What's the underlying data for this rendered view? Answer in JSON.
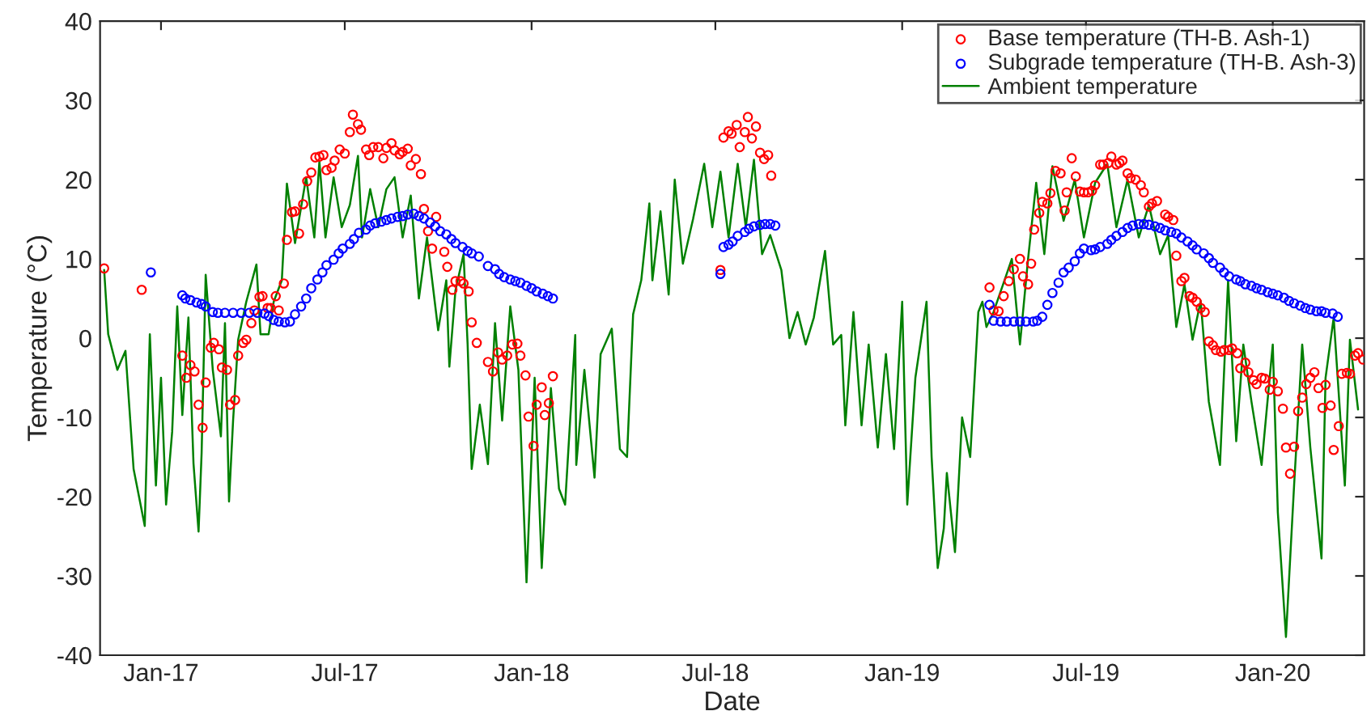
{
  "chart_data": {
    "type": "scatter",
    "xlabel": "Date",
    "ylabel": "Temperature (°C)",
    "xlim": [
      "2016-11-02",
      "2020-03-31"
    ],
    "xticks": [
      {
        "value": "2017-01-01",
        "label": "Jan-17"
      },
      {
        "value": "2017-07-01",
        "label": "Jul-17"
      },
      {
        "value": "2018-01-01",
        "label": "Jan-18"
      },
      {
        "value": "2018-07-01",
        "label": "Jul-18"
      },
      {
        "value": "2019-01-01",
        "label": "Jan-19"
      },
      {
        "value": "2019-07-01",
        "label": "Jul-19"
      },
      {
        "value": "2020-01-01",
        "label": "Jan-20"
      }
    ],
    "ylim": [
      -40,
      40
    ],
    "yticks": [
      -40,
      -30,
      -20,
      -10,
      0,
      10,
      20,
      30,
      40
    ],
    "grid": false,
    "legend": "top right",
    "series": [
      {
        "name": "Base temperature (TH-B. Ash-1)",
        "marker": "circle",
        "color": "#ff0000",
        "x": [
          "2016-11-06",
          "2016-12-13",
          "2017-01-22",
          "2017-01-26",
          "2017-01-30",
          "2017-02-03",
          "2017-02-07",
          "2017-02-11",
          "2017-02-14",
          "2017-02-19",
          "2017-02-22",
          "2017-02-27",
          "2017-03-02",
          "2017-03-07",
          "2017-03-10",
          "2017-03-15",
          "2017-03-18",
          "2017-03-23",
          "2017-03-26",
          "2017-03-31",
          "2017-04-03",
          "2017-04-08",
          "2017-04-11",
          "2017-04-16",
          "2017-04-19",
          "2017-04-24",
          "2017-04-27",
          "2017-05-02",
          "2017-05-05",
          "2017-05-10",
          "2017-05-13",
          "2017-05-17",
          "2017-05-21",
          "2017-05-25",
          "2017-05-29",
          "2017-06-02",
          "2017-06-06",
          "2017-06-10",
          "2017-06-13",
          "2017-06-18",
          "2017-06-21",
          "2017-06-26",
          "2017-07-01",
          "2017-07-06",
          "2017-07-09",
          "2017-07-14",
          "2017-07-17",
          "2017-07-22",
          "2017-07-25",
          "2017-07-29",
          "2017-08-03",
          "2017-08-08",
          "2017-08-11",
          "2017-08-16",
          "2017-08-19",
          "2017-08-24",
          "2017-08-27",
          "2017-09-01",
          "2017-09-04",
          "2017-09-09",
          "2017-09-14",
          "2017-09-17",
          "2017-09-21",
          "2017-09-25",
          "2017-09-29",
          "2017-10-07",
          "2017-10-10",
          "2017-10-15",
          "2017-10-18",
          "2017-10-23",
          "2017-10-26",
          "2017-10-31",
          "2017-11-03",
          "2017-11-08",
          "2017-11-19",
          "2017-11-24",
          "2017-11-29",
          "2017-12-03",
          "2017-12-08",
          "2017-12-13",
          "2017-12-18",
          "2017-12-21",
          "2017-12-26",
          "2017-12-29",
          "2018-01-03",
          "2018-01-06",
          "2018-01-11",
          "2018-01-14",
          "2018-01-18",
          "2018-01-22",
          "2018-07-06",
          "2018-07-09",
          "2018-07-14",
          "2018-07-17",
          "2018-07-22",
          "2018-07-25",
          "2018-07-30",
          "2018-08-02",
          "2018-08-06",
          "2018-08-10",
          "2018-08-14",
          "2018-08-18",
          "2018-08-22",
          "2018-08-25",
          "2019-03-28",
          "2019-04-01",
          "2019-04-06",
          "2019-04-11",
          "2019-04-16",
          "2019-04-21",
          "2019-04-27",
          "2019-04-30",
          "2019-05-05",
          "2019-05-08",
          "2019-05-11",
          "2019-05-16",
          "2019-05-19",
          "2019-05-24",
          "2019-05-27",
          "2019-06-01",
          "2019-06-06",
          "2019-06-10",
          "2019-06-12",
          "2019-06-17",
          "2019-06-21",
          "2019-06-25",
          "2019-06-29",
          "2019-07-03",
          "2019-07-07",
          "2019-07-10",
          "2019-07-15",
          "2019-07-18",
          "2019-07-23",
          "2019-07-26",
          "2019-07-31",
          "2019-08-03",
          "2019-08-06",
          "2019-08-11",
          "2019-08-14",
          "2019-08-19",
          "2019-08-24",
          "2019-08-27",
          "2019-09-01",
          "2019-09-04",
          "2019-09-09",
          "2019-09-17",
          "2019-09-20",
          "2019-09-25",
          "2019-09-28",
          "2019-10-03",
          "2019-10-06",
          "2019-10-11",
          "2019-10-14",
          "2019-10-18",
          "2019-10-22",
          "2019-10-26",
          "2019-10-30",
          "2019-11-03",
          "2019-11-06",
          "2019-11-11",
          "2019-11-14",
          "2019-11-19",
          "2019-11-22",
          "2019-11-27",
          "2019-11-30",
          "2019-12-05",
          "2019-12-08",
          "2019-12-13",
          "2019-12-16",
          "2019-12-21",
          "2019-12-24",
          "2019-12-29",
          "2020-01-01",
          "2020-01-06",
          "2020-01-11",
          "2020-01-14",
          "2020-01-18",
          "2020-01-22",
          "2020-01-26",
          "2020-01-30",
          "2020-02-03",
          "2020-02-07",
          "2020-02-11",
          "2020-02-15",
          "2020-02-19",
          "2020-02-22",
          "2020-02-27",
          "2020-03-01",
          "2020-03-06",
          "2020-03-09",
          "2020-03-14",
          "2020-03-17",
          "2020-03-22",
          "2020-03-25",
          "2020-03-30"
        ],
        "values": [
          8.8,
          6.1,
          -2.2,
          -5,
          -3.4,
          -4.2,
          -8.4,
          -11.3,
          -5.6,
          -1.2,
          -0.6,
          -1.4,
          -3.7,
          -4,
          -8.4,
          -7.8,
          -2.2,
          -0.6,
          -0.2,
          1.9,
          3.5,
          5.2,
          5.3,
          3.8,
          3.8,
          5.3,
          3.5,
          6.9,
          12.4,
          15.9,
          16,
          13.2,
          16.9,
          19.8,
          20.9,
          22.8,
          22.9,
          23.1,
          21.2,
          21.5,
          22.4,
          23.8,
          23.3,
          26,
          28.2,
          27,
          26.3,
          23.8,
          23.1,
          24.1,
          24.1,
          22.7,
          24,
          24.6,
          23.7,
          23.2,
          23.5,
          23.9,
          21.8,
          22.6,
          20.7,
          16.3,
          13.5,
          11.3,
          15.3,
          10.9,
          9,
          6.1,
          7.2,
          7.2,
          6.9,
          5.9,
          2,
          -0.6,
          -3,
          -4.2,
          -1.8,
          -2.7,
          -2.2,
          -0.8,
          -0.7,
          -2.2,
          -4.7,
          -9.9,
          -13.6,
          -8.4,
          -6.2,
          -9.7,
          -8.2,
          -4.8,
          8.6,
          25.3,
          26.1,
          25.8,
          26.9,
          24.1,
          26,
          27.9,
          25.2,
          26.7,
          23.4,
          22.6,
          23.1,
          20.5,
          6.4,
          3.5,
          3.4,
          5.3,
          7.2,
          8.7,
          10,
          7.8,
          6.8,
          9.4,
          13.7,
          15.8,
          17.2,
          17,
          18.3,
          21.1,
          20.8,
          16.1,
          18.4,
          22.7,
          20.4,
          18.5,
          18.4,
          18.4,
          18.6,
          19.3,
          21.9,
          21.9,
          22.1,
          22.9,
          21.9,
          22.1,
          22.4,
          20.8,
          20.2,
          20,
          19.3,
          18.4,
          16.6,
          17,
          17.3,
          15.6,
          15.3,
          14.9,
          10.4,
          7.2,
          7.6,
          5.3,
          5.1,
          4.6,
          3.8,
          3.3,
          -0.4,
          -0.9,
          -1.5,
          -1.7,
          -1.5,
          -1.5,
          -1.3,
          -1.9,
          -3.8,
          -3.1,
          -4.3,
          -5.3,
          -5.8,
          -5,
          -5.1,
          -6.5,
          -5.5,
          -6.7,
          -8.9,
          -13.8,
          -17.1,
          -13.7,
          -9.2,
          -7.5,
          -5.8,
          -5,
          -4.3,
          -6.3,
          -8.8,
          -5.9,
          -8.5,
          -14.1,
          -11.1,
          -4.5,
          -4.4,
          -4.5,
          -2.2,
          -1.9,
          -2.7
        ]
      },
      {
        "name": "Subgrade temperature (TH-B. Ash-3)",
        "marker": "circle",
        "color": "#0000ff",
        "x": [
          "2016-12-22",
          "2017-01-22",
          "2017-01-25",
          "2017-01-30",
          "2017-02-05",
          "2017-02-10",
          "2017-02-14",
          "2017-02-21",
          "2017-02-26",
          "2017-03-05",
          "2017-03-13",
          "2017-03-21",
          "2017-03-29",
          "2017-04-06",
          "2017-04-13",
          "2017-04-17",
          "2017-04-22",
          "2017-04-27",
          "2017-05-03",
          "2017-05-08",
          "2017-05-13",
          "2017-05-19",
          "2017-05-24",
          "2017-05-29",
          "2017-06-04",
          "2017-06-09",
          "2017-06-13",
          "2017-06-20",
          "2017-06-25",
          "2017-06-29",
          "2017-07-06",
          "2017-07-10",
          "2017-07-15",
          "2017-07-22",
          "2017-07-26",
          "2017-07-31",
          "2017-08-06",
          "2017-08-11",
          "2017-08-16",
          "2017-08-22",
          "2017-08-27",
          "2017-09-01",
          "2017-09-07",
          "2017-09-12",
          "2017-09-17",
          "2017-09-23",
          "2017-09-28",
          "2017-10-03",
          "2017-10-09",
          "2017-10-14",
          "2017-10-18",
          "2017-10-25",
          "2017-10-30",
          "2017-11-03",
          "2017-11-10",
          "2017-11-19",
          "2017-11-26",
          "2017-11-30",
          "2017-12-05",
          "2017-12-11",
          "2017-12-16",
          "2017-12-21",
          "2017-12-27",
          "2018-01-01",
          "2018-01-06",
          "2018-01-12",
          "2018-01-17",
          "2018-01-22",
          "2018-07-06",
          "2018-07-09",
          "2018-07-14",
          "2018-07-18",
          "2018-07-23",
          "2018-07-30",
          "2018-08-03",
          "2018-08-08",
          "2018-08-14",
          "2018-08-19",
          "2018-08-24",
          "2018-08-29",
          "2019-03-28",
          "2019-04-01",
          "2019-04-08",
          "2019-04-14",
          "2019-04-21",
          "2019-04-27",
          "2019-05-03",
          "2019-05-10",
          "2019-05-14",
          "2019-05-19",
          "2019-05-24",
          "2019-05-29",
          "2019-06-04",
          "2019-06-09",
          "2019-06-14",
          "2019-06-20",
          "2019-06-25",
          "2019-06-29",
          "2019-07-06",
          "2019-07-10",
          "2019-07-15",
          "2019-07-22",
          "2019-07-26",
          "2019-07-31",
          "2019-08-06",
          "2019-08-11",
          "2019-08-16",
          "2019-08-22",
          "2019-08-27",
          "2019-09-01",
          "2019-09-07",
          "2019-09-12",
          "2019-09-17",
          "2019-09-23",
          "2019-09-28",
          "2019-10-03",
          "2019-10-09",
          "2019-10-14",
          "2019-10-18",
          "2019-10-25",
          "2019-10-30",
          "2019-11-03",
          "2019-11-10",
          "2019-11-14",
          "2019-11-19",
          "2019-11-26",
          "2019-11-30",
          "2019-12-05",
          "2019-12-11",
          "2019-12-16",
          "2019-12-21",
          "2019-12-27",
          "2020-01-01",
          "2020-01-06",
          "2020-01-12",
          "2020-01-17",
          "2020-01-22",
          "2020-01-28",
          "2020-02-02",
          "2020-02-07",
          "2020-02-13",
          "2020-02-18",
          "2020-02-22",
          "2020-02-29",
          "2020-03-05"
        ],
        "values": [
          8.3,
          5.4,
          5,
          4.8,
          4.5,
          4.3,
          4,
          3.3,
          3.2,
          3.2,
          3.2,
          3.2,
          3.2,
          3.2,
          3.1,
          2.8,
          2.3,
          2.1,
          2,
          2.1,
          3,
          4,
          5,
          6.3,
          7.4,
          8.3,
          9.2,
          9.9,
          10.7,
          11.3,
          11.9,
          12.5,
          13.3,
          13.7,
          14.2,
          14.5,
          14.7,
          14.9,
          15.1,
          15.3,
          15.4,
          15.6,
          15.7,
          15.4,
          15.1,
          14.6,
          14.1,
          13.5,
          13.1,
          12.5,
          12,
          11.5,
          11,
          10.7,
          10.3,
          9.1,
          8.7,
          8.1,
          7.7,
          7.4,
          7.2,
          7,
          6.6,
          6.3,
          5.9,
          5.6,
          5.3,
          5,
          8.1,
          11.5,
          11.8,
          12.2,
          12.9,
          13.4,
          13.8,
          14.1,
          14.3,
          14.4,
          14.4,
          14.2,
          4.2,
          2.2,
          2.1,
          2.1,
          2.1,
          2.1,
          2.1,
          2.1,
          2.2,
          2.7,
          4.2,
          5.7,
          7,
          8.3,
          8.9,
          9.7,
          10.7,
          11.3,
          11.1,
          11.2,
          11.5,
          11.9,
          12.4,
          12.9,
          13.4,
          13.9,
          14.2,
          14.4,
          14.4,
          14.3,
          14.1,
          13.9,
          13.6,
          13.4,
          13.2,
          12.7,
          12.2,
          11.7,
          11.2,
          10.7,
          10.1,
          9.5,
          8.9,
          8.3,
          7.8,
          7.4,
          7.2,
          6.8,
          6.6,
          6.3,
          6.1,
          5.8,
          5.6,
          5.4,
          5.1,
          4.7,
          4.4,
          4.1,
          3.8,
          3.6,
          3.4,
          3.4,
          3.2,
          3.1,
          2.7
        ]
      },
      {
        "name": "Ambient temperature",
        "type": "line",
        "marker": "none",
        "line_style": "solid",
        "color": "#008000",
        "x": [
          "2016-11-06",
          "2016-11-10",
          "2016-11-19",
          "2016-11-27",
          "2016-12-05",
          "2016-12-16",
          "2016-12-21",
          "2016-12-27",
          "2017-01-01",
          "2017-01-06",
          "2017-01-12",
          "2017-01-17",
          "2017-01-22",
          "2017-01-28",
          "2017-02-02",
          "2017-02-07",
          "2017-02-10",
          "2017-02-14",
          "2017-02-21",
          "2017-03-01",
          "2017-03-05",
          "2017-03-09",
          "2017-03-13",
          "2017-03-18",
          "2017-03-26",
          "2017-04-05",
          "2017-04-09",
          "2017-04-17",
          "2017-04-22",
          "2017-04-30",
          "2017-05-05",
          "2017-05-13",
          "2017-05-24",
          "2017-06-01",
          "2017-06-06",
          "2017-06-12",
          "2017-06-20",
          "2017-06-28",
          "2017-07-06",
          "2017-07-14",
          "2017-07-18",
          "2017-07-26",
          "2017-08-03",
          "2017-08-11",
          "2017-08-19",
          "2017-08-27",
          "2017-09-04",
          "2017-09-12",
          "2017-09-20",
          "2017-10-01",
          "2017-10-09",
          "2017-10-12",
          "2017-10-18",
          "2017-10-26",
          "2017-10-30",
          "2017-11-03",
          "2017-11-11",
          "2017-11-19",
          "2017-11-26",
          "2017-12-03",
          "2017-12-11",
          "2017-12-19",
          "2017-12-27",
          "2018-01-04",
          "2018-01-11",
          "2018-01-20",
          "2018-01-28",
          "2018-02-03",
          "2018-02-13",
          "2018-02-14",
          "2018-02-22",
          "2018-03-04",
          "2018-03-10",
          "2018-03-21",
          "2018-03-29",
          "2018-04-05",
          "2018-04-11",
          "2018-04-19",
          "2018-04-27",
          "2018-04-30",
          "2018-05-08",
          "2018-05-16",
          "2018-05-22",
          "2018-05-30",
          "2018-06-09",
          "2018-06-20",
          "2018-06-28",
          "2018-07-06",
          "2018-07-14",
          "2018-07-23",
          "2018-07-31",
          "2018-08-08",
          "2018-08-16",
          "2018-08-24",
          "2018-09-04",
          "2018-09-12",
          "2018-09-20",
          "2018-09-28",
          "2018-10-06",
          "2018-10-17",
          "2018-10-25",
          "2018-11-02",
          "2018-11-06",
          "2018-11-14",
          "2018-11-22",
          "2018-11-29",
          "2018-12-08",
          "2018-12-16",
          "2018-12-24",
          "2019-01-01",
          "2019-01-06",
          "2019-01-14",
          "2019-01-25",
          "2019-01-30",
          "2019-02-05",
          "2019-02-11",
          "2019-02-14",
          "2019-02-22",
          "2019-03-01",
          "2019-03-09",
          "2019-03-17",
          "2019-03-21",
          "2019-03-25",
          "2019-04-01",
          "2019-04-11",
          "2019-04-19",
          "2019-04-27",
          "2019-05-05",
          "2019-05-13",
          "2019-05-21",
          "2019-05-29",
          "2019-06-09",
          "2019-06-20",
          "2019-06-29",
          "2019-07-10",
          "2019-07-22",
          "2019-07-31",
          "2019-08-11",
          "2019-08-22",
          "2019-09-01",
          "2019-09-12",
          "2019-09-20",
          "2019-09-28",
          "2019-10-06",
          "2019-10-14",
          "2019-10-22",
          "2019-10-30",
          "2019-11-10",
          "2019-11-18",
          "2019-11-26",
          "2019-12-03",
          "2019-12-11",
          "2019-12-21",
          "2020-01-01",
          "2020-01-06",
          "2020-01-14",
          "2020-01-22",
          "2020-01-30",
          "2020-02-07",
          "2020-02-18",
          "2020-02-22",
          "2020-03-01",
          "2020-03-12",
          "2020-03-17",
          "2020-03-25"
        ],
        "values": [
          8.6,
          0.5,
          -4,
          -1.6,
          -16.5,
          -23.7,
          0.5,
          -18.6,
          -5,
          -21,
          -11.8,
          4,
          -9.7,
          2.6,
          -15.8,
          -24.4,
          -14.5,
          8,
          -4,
          -12.4,
          1.9,
          -20.6,
          -10.4,
          -0.2,
          4.6,
          9.3,
          0.5,
          0.5,
          4.6,
          7.3,
          19.5,
          12,
          20.3,
          12.7,
          22.3,
          12.7,
          20.3,
          14,
          16.8,
          23,
          12.7,
          18.8,
          14,
          18.8,
          20.3,
          12.7,
          18,
          5,
          12.7,
          1,
          7.3,
          -3.6,
          6,
          10.6,
          -0.8,
          -16.5,
          -8.4,
          -15.9,
          1.9,
          -10.4,
          4,
          -4,
          -30.8,
          -5,
          -29,
          -6.3,
          -19,
          -21,
          0.4,
          -16,
          -4,
          -17.6,
          -2,
          1.2,
          -14,
          -15,
          3,
          7.3,
          17,
          7.3,
          16,
          5.5,
          20,
          9.4,
          15,
          22,
          14,
          21,
          12.7,
          22,
          14,
          22.5,
          10.6,
          13,
          8.6,
          0,
          3.3,
          -0.8,
          2.6,
          11,
          -0.8,
          0.4,
          -11,
          3.3,
          -11,
          -0.8,
          -13.8,
          -2,
          -14,
          4.6,
          -21,
          -5,
          4.6,
          -15,
          -29,
          -24,
          -17,
          -27,
          -10,
          -15,
          3.3,
          4.6,
          1.4,
          3.3,
          7,
          10,
          -0.8,
          10,
          19.6,
          10.6,
          21.7,
          14.8,
          20,
          12.7,
          19.6,
          22,
          14,
          20,
          12.7,
          16.8,
          10.6,
          13,
          1.4,
          6.8,
          -0.2,
          4.7,
          -8,
          -16,
          7.3,
          -13,
          -0.8,
          -8,
          -16,
          -0.8,
          -22,
          -37.7,
          -18.6,
          -0.8,
          -13.8,
          -27.8,
          -5,
          2.6,
          -18.6,
          -0.2,
          -9
        ]
      }
    ]
  }
}
